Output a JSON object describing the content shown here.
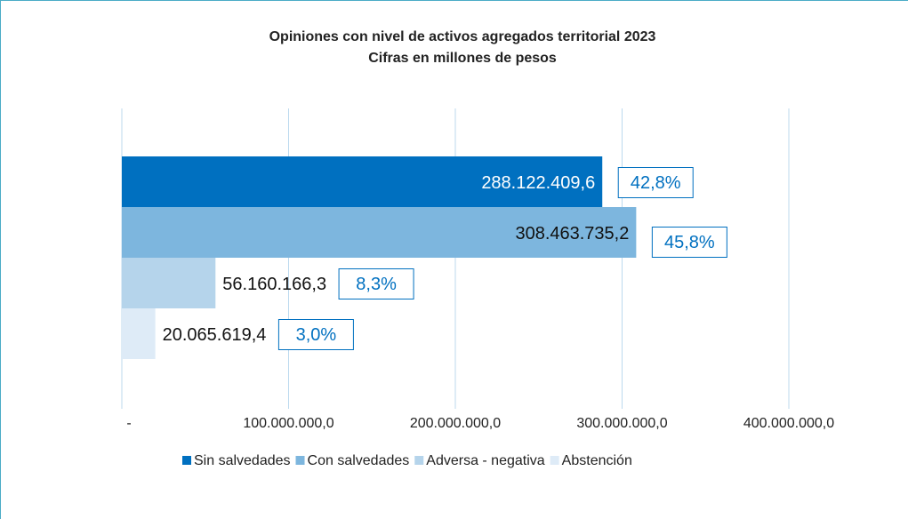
{
  "chart_data": {
    "type": "hbar",
    "title": "Opiniones con nivel de activos agregados territorial 2023",
    "subtitle": "Cifras en millones de pesos",
    "xlim": [
      0,
      400000000
    ],
    "xticks": [
      {
        "value": 0,
        "label": "-"
      },
      {
        "value": 100000000,
        "label": "100.000.000,0"
      },
      {
        "value": 200000000,
        "label": "200.000.000,0"
      },
      {
        "value": 300000000,
        "label": "300.000.000,0"
      },
      {
        "value": 400000000,
        "label": "400.000.000,0"
      }
    ],
    "grid": true,
    "legend": "bottom",
    "series": [
      {
        "name": "Sin salvedades",
        "color": "#0070c0",
        "values": [
          288122409.6
        ],
        "value_labels": [
          "288.122.409,6"
        ],
        "share": 42.8,
        "share_label": "42,8%"
      },
      {
        "name": "Con salvedades",
        "color": "#7db6de",
        "values": [
          308463735.2
        ],
        "value_labels": [
          "308.463.735,2"
        ],
        "share": 45.8,
        "share_label": "45,8%"
      },
      {
        "name": "Adversa - negativa",
        "color": "#b5d4eb",
        "values": [
          56160166.3
        ],
        "value_labels": [
          "56.160.166,3"
        ],
        "share": 8.3,
        "share_label": "8,3%"
      },
      {
        "name": "Abstención",
        "color": "#deebf7",
        "values": [
          20065619.4
        ],
        "value_labels": [
          "20.065.619,4"
        ],
        "share": 3.0,
        "share_label": "3,0%"
      }
    ]
  }
}
